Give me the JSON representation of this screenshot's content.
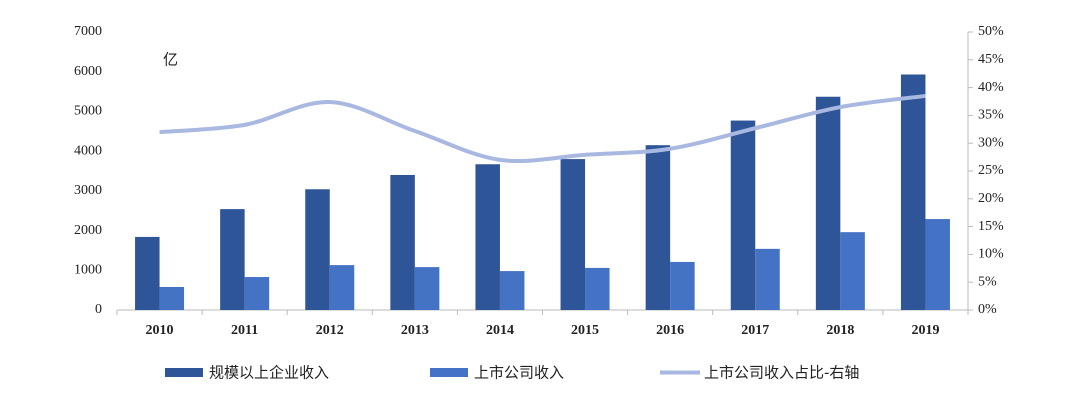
{
  "chart_data": {
    "type": "bar-line",
    "annotation": "亿",
    "categories": [
      "2010",
      "2011",
      "2012",
      "2013",
      "2014",
      "2015",
      "2016",
      "2017",
      "2018",
      "2019"
    ],
    "series": [
      {
        "name": "规模以上企业收入",
        "color": "#2e5597",
        "type": "bar",
        "values": [
          1840,
          2540,
          3040,
          3400,
          3670,
          3800,
          4150,
          4770,
          5370,
          5930
        ]
      },
      {
        "name": "上市公司收入",
        "color": "#4472c4",
        "type": "bar",
        "values": [
          580,
          830,
          1130,
          1080,
          980,
          1060,
          1210,
          1540,
          1960,
          2290
        ]
      },
      {
        "name": "上市公司收入占比-右轴",
        "color": "#a9b8e0",
        "type": "line",
        "axis": "y2",
        "values": [
          32.0,
          33.3,
          37.4,
          32.2,
          27.0,
          27.9,
          29.0,
          32.7,
          36.5,
          38.5
        ]
      }
    ],
    "ylim": [
      0,
      7000
    ],
    "yticks": [
      0,
      1000,
      2000,
      3000,
      4000,
      5000,
      6000,
      7000
    ],
    "y2lim": [
      0,
      50
    ],
    "y2ticks": [
      {
        "value": 0,
        "label": "0%"
      },
      {
        "value": 5,
        "label": "5%"
      },
      {
        "value": 10,
        "label": "10%"
      },
      {
        "value": 15,
        "label": "15%"
      },
      {
        "value": 20,
        "label": "20%"
      },
      {
        "value": 25,
        "label": "25%"
      },
      {
        "value": 30,
        "label": "30%"
      },
      {
        "value": 35,
        "label": "35%"
      },
      {
        "value": 40,
        "label": "40%"
      },
      {
        "value": 45,
        "label": "45%"
      },
      {
        "value": 50,
        "label": "50%"
      }
    ],
    "legend": "bottom"
  }
}
